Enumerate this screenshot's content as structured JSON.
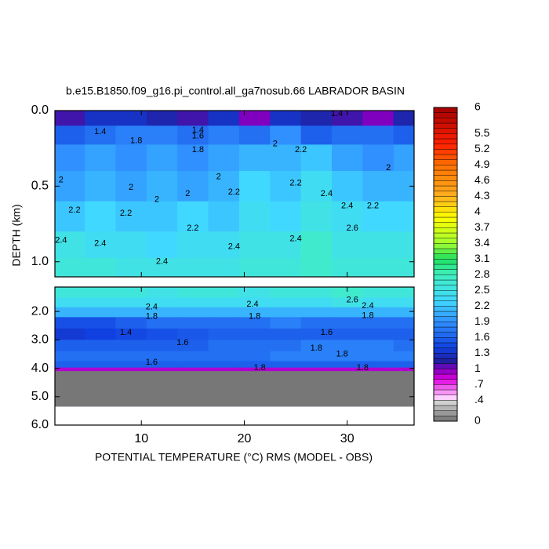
{
  "chart_data": {
    "type": "contour",
    "title": "b.e15.B1850.f09_g16.pi_control.all_ga7nosub.66 LABRADOR BASIN",
    "xlabel": "POTENTIAL TEMPERATURE (°C) RMS (MODEL - OBS)",
    "ylabel": "DEPTH (km)",
    "xlim": [
      1.6,
      36.5
    ],
    "xticks": [
      10,
      20,
      30
    ],
    "x": [
      3,
      6,
      9,
      12,
      15,
      18,
      21,
      24,
      27,
      30,
      33,
      36
    ],
    "colormap": [
      [
        0,
        "#707070"
      ],
      [
        0.35,
        "#d0d0d0"
      ],
      [
        0.45,
        "#ffd0ff"
      ],
      [
        0.8,
        "#e000e0"
      ],
      [
        1.0,
        "#8000c0"
      ],
      [
        1.15,
        "#2020a0"
      ],
      [
        1.4,
        "#1040e0"
      ],
      [
        1.9,
        "#3090ff"
      ],
      [
        2.3,
        "#40d8ff"
      ],
      [
        2.8,
        "#40f0c0"
      ],
      [
        3.1,
        "#20e060"
      ],
      [
        3.4,
        "#a0ff30"
      ],
      [
        3.9,
        "#ffff00"
      ],
      [
        4.3,
        "#ffb020"
      ],
      [
        4.9,
        "#ff7000"
      ],
      [
        5.3,
        "#ff2000"
      ],
      [
        6,
        "#a00000"
      ]
    ],
    "clim": [
      0,
      6
    ],
    "contour_interval": 0.1,
    "cticks": [
      0,
      {
        "value": 0.4,
        "label": ".4"
      },
      {
        "value": 0.7,
        "label": ".7"
      },
      1,
      1.3,
      1.6,
      1.9,
      2.2,
      2.5,
      2.8,
      3.1,
      3.4,
      3.7,
      4,
      4.3,
      4.6,
      4.9,
      5.2,
      5.5,
      6
    ],
    "panels": [
      {
        "ylim": [
          0,
          1.1
        ],
        "yticks": [
          {
            "value": 0,
            "label": "0.0"
          },
          {
            "value": 0.5,
            "label": "0.5"
          },
          {
            "value": 1,
            "label": "1.0"
          }
        ],
        "depths": [
          0.05,
          0.15,
          0.3,
          0.5,
          0.7,
          0.9,
          1.05
        ],
        "values": [
          [
            1.1,
            1.3,
            1.3,
            1.2,
            1.1,
            1.3,
            1.0,
            1.3,
            1.2,
            1.1,
            1.0,
            1.2
          ],
          [
            1.6,
            1.7,
            1.8,
            1.8,
            1.7,
            1.8,
            1.7,
            1.9,
            1.6,
            1.7,
            1.7,
            1.6
          ],
          [
            1.9,
            2.0,
            1.9,
            2.0,
            1.9,
            2.0,
            2.1,
            2.1,
            2.2,
            2.0,
            1.9,
            2.0
          ],
          [
            2.0,
            2.1,
            2.0,
            2.1,
            2.0,
            2.1,
            2.3,
            2.2,
            2.4,
            2.2,
            2.1,
            2.1
          ],
          [
            2.2,
            2.3,
            2.2,
            2.2,
            2.3,
            2.2,
            2.4,
            2.3,
            2.5,
            2.4,
            2.3,
            2.3
          ],
          [
            2.5,
            2.4,
            2.4,
            2.3,
            2.4,
            2.4,
            2.5,
            2.5,
            2.7,
            2.5,
            2.5,
            2.5
          ],
          [
            2.6,
            2.6,
            2.5,
            2.5,
            2.5,
            2.5,
            2.6,
            2.6,
            2.7,
            2.6,
            2.6,
            2.6
          ]
        ],
        "contour_labels": [
          {
            "x": 6,
            "depth": 0.14,
            "value": 1.4
          },
          {
            "x": 9.5,
            "depth": 0.2,
            "value": 1.8
          },
          {
            "x": 15.5,
            "depth": 0.13,
            "value": 1.4
          },
          {
            "x": 15.5,
            "depth": 0.17,
            "value": 1.6
          },
          {
            "x": 15.5,
            "depth": 0.26,
            "value": 1.8
          },
          {
            "x": 23,
            "depth": 0.22,
            "value": 2
          },
          {
            "x": 25.5,
            "depth": 0.26,
            "value": 2.2
          },
          {
            "x": 2.2,
            "depth": 0.46,
            "value": 2
          },
          {
            "x": 9,
            "depth": 0.51,
            "value": 2
          },
          {
            "x": 11.5,
            "depth": 0.59,
            "value": 2
          },
          {
            "x": 14.5,
            "depth": 0.55,
            "value": 2
          },
          {
            "x": 17.5,
            "depth": 0.44,
            "value": 2
          },
          {
            "x": 19,
            "depth": 0.54,
            "value": 2.2
          },
          {
            "x": 25,
            "depth": 0.48,
            "value": 2.2
          },
          {
            "x": 28,
            "depth": 0.55,
            "value": 2.4
          },
          {
            "x": 30,
            "depth": 0.63,
            "value": 2.4
          },
          {
            "x": 32.5,
            "depth": 0.63,
            "value": 2.2
          },
          {
            "x": 34,
            "depth": 0.38,
            "value": 2
          },
          {
            "x": 30.5,
            "depth": 0.78,
            "value": 2.6
          },
          {
            "x": 8.5,
            "depth": 0.68,
            "value": 2.2
          },
          {
            "x": 15,
            "depth": 0.78,
            "value": 2.2
          },
          {
            "x": 12,
            "depth": 1.0,
            "value": 2.4
          },
          {
            "x": 6,
            "depth": 0.88,
            "value": 2.4
          },
          {
            "x": 2.2,
            "depth": 0.86,
            "value": 2.4
          },
          {
            "x": 19,
            "depth": 0.9,
            "value": 2.4
          },
          {
            "x": 25,
            "depth": 0.85,
            "value": 2.4
          },
          {
            "x": 3.5,
            "depth": 0.66,
            "value": 2.2
          },
          {
            "x": 29,
            "depth": 0.02,
            "value": 1.4
          }
        ]
      },
      {
        "ylim": [
          1.14,
          6.0
        ],
        "yticks": [
          {
            "value": 2,
            "label": "2.0"
          },
          {
            "value": 3,
            "label": "3.0"
          },
          {
            "value": 4,
            "label": "4.0"
          },
          {
            "value": 5,
            "label": "5.0"
          },
          {
            "value": 6,
            "label": "6.0"
          }
        ],
        "depths": [
          1.3,
          1.7,
          2.0,
          2.4,
          2.8,
          3.2,
          3.6,
          3.9,
          4.05
        ],
        "values": [
          [
            2.6,
            2.6,
            2.6,
            2.5,
            2.6,
            2.6,
            2.5,
            2.6,
            2.6,
            2.7,
            2.6,
            2.6
          ],
          [
            2.4,
            2.4,
            2.4,
            2.4,
            2.4,
            2.4,
            2.4,
            2.4,
            2.4,
            2.5,
            2.4,
            2.4
          ],
          [
            2.1,
            2.1,
            2.1,
            2.1,
            2.1,
            2.1,
            2.1,
            2.1,
            2.1,
            2.1,
            2.1,
            2.1
          ],
          [
            1.5,
            1.5,
            1.6,
            1.7,
            1.7,
            1.7,
            1.7,
            1.8,
            1.7,
            1.7,
            1.7,
            1.7
          ],
          [
            1.35,
            1.4,
            1.45,
            1.5,
            1.55,
            1.6,
            1.6,
            1.6,
            1.6,
            1.6,
            1.6,
            1.6
          ],
          [
            1.6,
            1.6,
            1.6,
            1.6,
            1.6,
            1.7,
            1.7,
            1.7,
            1.8,
            1.8,
            1.8,
            1.7
          ],
          [
            1.7,
            1.7,
            1.7,
            1.7,
            1.7,
            1.7,
            1.7,
            1.8,
            1.8,
            1.8,
            1.8,
            1.8
          ],
          [
            1.6,
            1.6,
            1.6,
            1.6,
            1.6,
            1.6,
            1.6,
            1.6,
            1.6,
            1.6,
            1.6,
            1.6
          ],
          [
            0.9,
            0.9,
            0.9,
            0.9,
            0.9,
            0.9,
            0.9,
            0.9,
            0.9,
            0.9,
            0.9,
            0.9
          ]
        ],
        "land": {
          "depth": [
            4.1,
            5.35
          ],
          "color": "#777777"
        },
        "contour_labels": [
          {
            "x": 11,
            "depth": 1.85,
            "value": 2.4
          },
          {
            "x": 11,
            "depth": 2.18,
            "value": 1.8
          },
          {
            "x": 20.8,
            "depth": 1.75,
            "value": 2.4
          },
          {
            "x": 21,
            "depth": 2.18,
            "value": 1.8
          },
          {
            "x": 30.5,
            "depth": 1.6,
            "value": 2.6
          },
          {
            "x": 32,
            "depth": 1.8,
            "value": 2.4
          },
          {
            "x": 32,
            "depth": 2.15,
            "value": 1.8
          },
          {
            "x": 8.5,
            "depth": 2.75,
            "value": 1.4
          },
          {
            "x": 14,
            "depth": 3.1,
            "value": 1.6
          },
          {
            "x": 28,
            "depth": 2.75,
            "value": 1.6
          },
          {
            "x": 27,
            "depth": 3.3,
            "value": 1.8
          },
          {
            "x": 29.5,
            "depth": 3.5,
            "value": 1.8
          },
          {
            "x": 11,
            "depth": 3.8,
            "value": 1.6
          },
          {
            "x": 21.5,
            "depth": 3.98,
            "value": 1.8
          },
          {
            "x": 31.5,
            "depth": 3.98,
            "value": 1.8
          }
        ]
      }
    ]
  }
}
